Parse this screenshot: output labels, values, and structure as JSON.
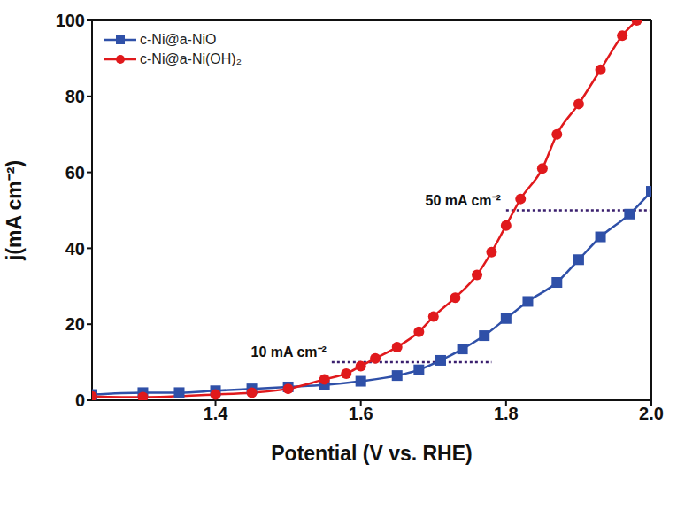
{
  "chart_data": {
    "type": "line",
    "x_label": "Potential (V vs. RHE)",
    "y_label": "j(mA cm⁻²)",
    "xlim": [
      1.23,
      2.0
    ],
    "xticks": [
      1.4,
      1.6,
      1.8,
      {
        "value": 2,
        "label": "2.0"
      }
    ],
    "ylim": [
      0,
      100
    ],
    "yticks": [
      0,
      20,
      40,
      60,
      80,
      100
    ],
    "legend": "upper left",
    "series": [
      {
        "name": "c-Ni@a-NiO",
        "color": "#2f50a8",
        "marker": "square",
        "x": [
          1.23,
          1.3,
          1.35,
          1.4,
          1.45,
          1.5,
          1.55,
          1.6,
          1.65,
          1.68,
          1.71,
          1.74,
          1.77,
          1.8,
          1.83,
          1.87,
          1.9,
          1.93,
          1.97,
          2.0
        ],
        "values": [
          1.5,
          2,
          2,
          2.5,
          3,
          3.5,
          4,
          5,
          6.5,
          8,
          10.5,
          13.5,
          17,
          21.5,
          26,
          31,
          37,
          43,
          49,
          55
        ]
      },
      {
        "name": "c-Ni@a-Ni(OH)₂",
        "color": "#e0191c",
        "marker": "circle",
        "x": [
          1.23,
          1.3,
          1.4,
          1.45,
          1.5,
          1.55,
          1.58,
          1.6,
          1.62,
          1.65,
          1.68,
          1.7,
          1.73,
          1.76,
          1.78,
          1.8,
          1.82,
          1.85,
          1.87,
          1.9,
          1.93,
          1.96,
          1.98
        ],
        "values": [
          1,
          0.8,
          1.5,
          2,
          3,
          5.5,
          7,
          9,
          11,
          14,
          18,
          22,
          27,
          33,
          39,
          46,
          53,
          61,
          70,
          78,
          87,
          96,
          100
        ]
      }
    ],
    "annotations": [
      {
        "text": "10 mA cm⁻²",
        "y": 10,
        "x_start": 1.56,
        "x_end": 1.78
      },
      {
        "text": "50 mA cm⁻²",
        "y": 50,
        "x_start": 1.8,
        "x_end": 2.0
      }
    ]
  }
}
